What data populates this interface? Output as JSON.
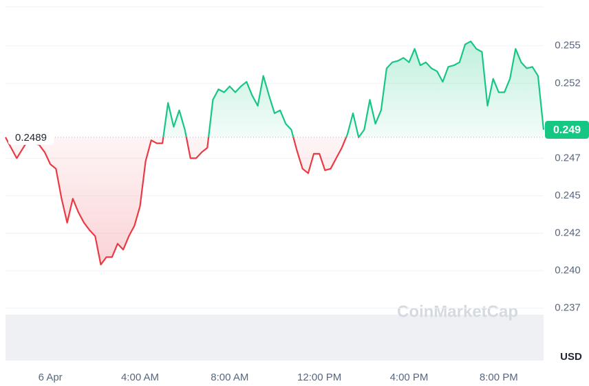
{
  "chart_data": {
    "type": "line",
    "categories": [
      null,
      null,
      null,
      null,
      null,
      null,
      null,
      null,
      "6 Apr",
      null,
      null,
      null,
      null,
      null,
      null,
      null,
      null,
      null,
      null,
      null,
      null,
      null,
      null,
      null,
      "4:00 AM",
      null,
      null,
      null,
      null,
      null,
      null,
      null,
      null,
      null,
      null,
      null,
      null,
      null,
      null,
      null,
      "8:00 AM",
      null,
      null,
      null,
      null,
      null,
      null,
      null,
      null,
      null,
      null,
      null,
      null,
      null,
      null,
      null,
      "12:00 PM",
      null,
      null,
      null,
      null,
      null,
      null,
      null,
      null,
      null,
      null,
      null,
      null,
      null,
      null,
      null,
      "4:00 PM",
      null,
      null,
      null,
      null,
      null,
      null,
      null,
      null,
      null,
      null,
      null,
      null,
      null,
      null,
      null,
      "8:00 PM",
      null,
      null,
      null,
      null,
      null,
      null,
      null,
      null
    ],
    "values": [
      0.2489,
      0.2482,
      0.2475,
      0.2481,
      0.2487,
      0.2485,
      0.2484,
      0.2479,
      0.2471,
      0.2468,
      0.2448,
      0.2432,
      0.2448,
      0.2439,
      0.2432,
      0.2427,
      0.2423,
      0.2404,
      0.2409,
      0.2409,
      0.2418,
      0.2414,
      0.2423,
      0.243,
      0.2443,
      0.2473,
      0.2487,
      0.2485,
      0.2485,
      0.2512,
      0.2496,
      0.2507,
      0.2494,
      0.2475,
      0.2475,
      0.2479,
      0.2482,
      0.2514,
      0.2521,
      0.2519,
      0.2523,
      0.2519,
      0.2523,
      0.2526,
      0.2517,
      0.251,
      0.253,
      0.2517,
      0.2505,
      0.2507,
      0.2498,
      0.2494,
      0.248,
      0.2468,
      0.2465,
      0.2478,
      0.2478,
      0.2467,
      0.2468,
      0.2475,
      0.2482,
      0.2491,
      0.2505,
      0.2489,
      0.2494,
      0.2514,
      0.2498,
      0.2507,
      0.2535,
      0.2539,
      0.254,
      0.2542,
      0.2539,
      0.2548,
      0.2537,
      0.2539,
      0.2535,
      0.2533,
      0.2526,
      0.2536,
      0.2537,
      0.2539,
      0.2551,
      0.2553,
      0.2548,
      0.2546,
      0.251,
      0.2528,
      0.2519,
      0.2519,
      0.2528,
      0.2548,
      0.2539,
      0.2535,
      0.2536,
      0.253,
      0.2494
    ],
    "baseline": 0.2489,
    "last_price_label": "0.249",
    "color_up": "#16c784",
    "color_down": "#ea3943",
    "ylim": [
      0.234,
      0.2576
    ],
    "yticks": [
      {
        "value": 0.2375,
        "label": "0.237"
      },
      {
        "value": 0.24,
        "label": "0.240"
      },
      {
        "value": 0.2425,
        "label": "0.242"
      },
      0.245,
      {
        "value": 0.2475,
        "label": "0.247"
      },
      {
        "value": 0.2525,
        "label": "0.252"
      },
      0.255
    ],
    "grid": true,
    "currency": "USD",
    "watermark": "CoinMarketCap"
  }
}
